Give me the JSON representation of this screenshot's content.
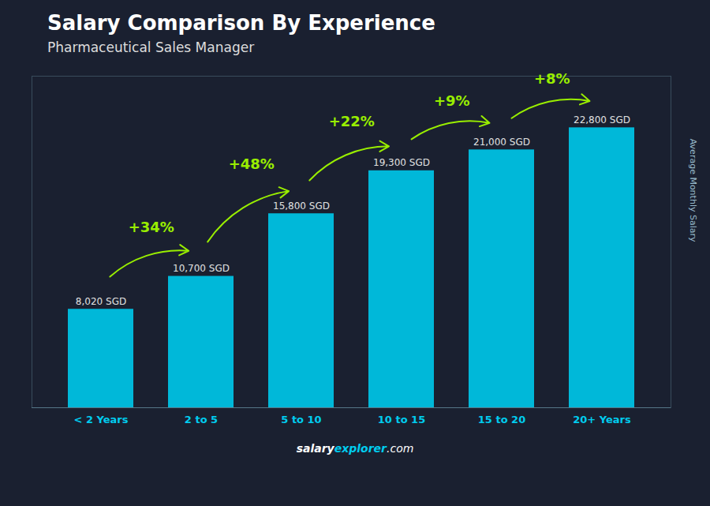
{
  "chart_data": {
    "type": "bar",
    "title": "Salary Comparison By Experience",
    "subtitle": "Pharmaceutical Sales Manager",
    "y_label": "Average Monthly Salary",
    "categories": [
      "< 2 Years",
      "2 to 5",
      "5 to 10",
      "10 to 15",
      "15 to 20",
      "20+ Years"
    ],
    "values": [
      8020,
      10700,
      15800,
      19300,
      21000,
      22800
    ],
    "value_labels": [
      "8,020 SGD",
      "10,700 SGD",
      "15,800 SGD",
      "19,300 SGD",
      "21,000 SGD",
      "22,800 SGD"
    ],
    "data_labels": true,
    "color": "#00b8d9",
    "ylim": [
      0,
      27000
    ],
    "tick_labels": "x",
    "grid": false,
    "annotations": [
      {
        "text": "+34%",
        "from": "< 2 Years",
        "to": "2 to 5",
        "color": "#99ee00"
      },
      {
        "text": "+48%",
        "from": "2 to 5",
        "to": "5 to 10",
        "color": "#99ee00"
      },
      {
        "text": "+22%",
        "from": "5 to 10",
        "to": "10 to 15",
        "color": "#99ee00"
      },
      {
        "text": "+9%",
        "from": "10 to 15",
        "to": "15 to 20",
        "color": "#99ee00"
      },
      {
        "text": "+8%",
        "from": "15 to 20",
        "to": "20+ Years",
        "color": "#99ee00"
      }
    ],
    "watermark": [
      "salary",
      "explorer",
      ".com"
    ]
  }
}
